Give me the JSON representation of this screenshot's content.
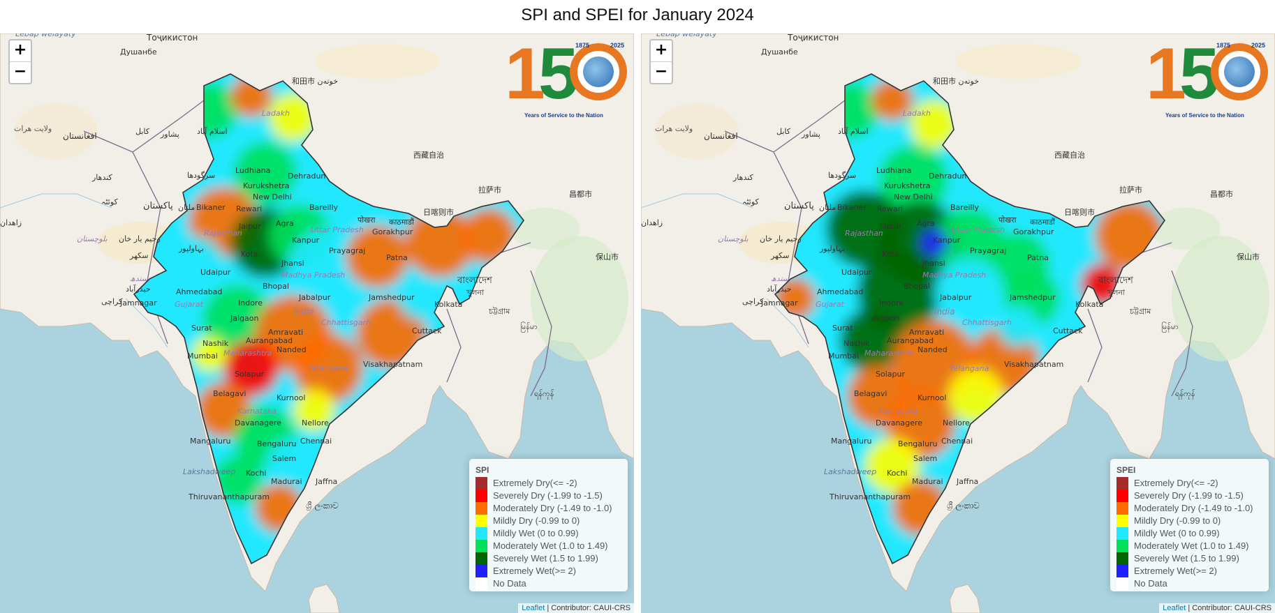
{
  "title": "SPI and SPEI for January 2024",
  "zoom": {
    "in": "+",
    "out": "−"
  },
  "logo": {
    "digit1": "1",
    "digit5": "5",
    "year_left": "1875",
    "year_right": "2025",
    "tagline": "Years of Service to the Nation"
  },
  "attribution": {
    "leaflet": "Leaflet",
    "separator": " | ",
    "contributor": "Contributor: CAUI-CRS"
  },
  "colors": {
    "extremely_dry": "#a52a2a",
    "severely_dry": "#ff0000",
    "moderately_dry": "#ff6a00",
    "mildly_dry": "#ffff00",
    "mildly_wet": "#22e8ff",
    "moderately_wet": "#00e05a",
    "severely_wet": "#006400",
    "extremely_wet": "#2020ff",
    "no_data": "#ffffff"
  },
  "legend_rows": [
    {
      "label": "Extremely Dry(<= -2)",
      "color": "#a52a2a"
    },
    {
      "label": "Severely Dry (-1.99 to -1.5)",
      "color": "#ff0000"
    },
    {
      "label": "Moderately Dry (-1.49 to -1.0)",
      "color": "#ff6a00"
    },
    {
      "label": "Mildly Dry (-0.99 to 0)",
      "color": "#ffff00"
    },
    {
      "label": "Mildly Wet (0 to 0.99)",
      "color": "#22e8ff"
    },
    {
      "label": "Moderately Wet (1.0 to 1.49)",
      "color": "#00e05a"
    },
    {
      "label": "Severely Wet (1.5 to 1.99)",
      "color": "#006400"
    },
    {
      "label": "Extremely Wet(>= 2)",
      "color": "#2020ff"
    },
    {
      "label": "No Data",
      "color": "#ffffff"
    }
  ],
  "panels": {
    "spi": {
      "legend_title": "SPI"
    },
    "spei": {
      "legend_title": "SPEI"
    }
  },
  "places": {
    "dushanbe": "Душанбе",
    "tajikistan": "Тоҷикистон",
    "hotan": "和田市 خوتەن",
    "afghanistan": "افغانستان",
    "herat": "ولایت هرات",
    "kabul": "کابل",
    "islamabad": "اسلام آباد",
    "peshawar": "پشاور",
    "kandahar": "کندهار",
    "quetta": "کوئٹہ",
    "sargodha": "سرگودھا",
    "pakistan": "پاکستان",
    "multan": "ملتان",
    "bahawalpur": "بہاولپور",
    "rahim_yar_khan": "رحیم یار خان",
    "sukkur": "سکھر",
    "sindh": "سندھ",
    "hyderabad_pk": "حیدرآباد",
    "karachi": "کراچی",
    "zahedan": "زاهدان",
    "balochistan": "بلوچستان",
    "xizang": "西藏自治",
    "lhasa": "拉萨市",
    "shigatse": "日喀则市",
    "changdu": "昌都市",
    "kathmandu": "काठमाडौं",
    "pokhara": "पोखरा",
    "bangladesh": "বাংলাদেশ",
    "khulna": "খুলনা",
    "chattogram": "চট্টগ্রাম",
    "myanmar": "မြန်မာ",
    "yangon": "ရန်ကုန်",
    "baoshan": "保山市",
    "ladakh": "Ladakh",
    "ludhiana": "Ludhiana",
    "dehradun": "Dehradun",
    "kurukshetra": "Kurukshetra",
    "new_delhi": "New Delhi",
    "bikaner": "Bikaner",
    "rewari": "Rewari",
    "bareilly": "Bareilly",
    "jaipur": "Jaipur",
    "agra": "Agra",
    "rajasthan": "Rajasthan",
    "uttar_pradesh": "Uttar Pradesh",
    "gorakhpur": "Gorakhpur",
    "kanpur": "Kanpur",
    "kota": "Kota",
    "prayagraj": "Prayagraj",
    "patna": "Patna",
    "jhansi": "Jhansi",
    "udaipur": "Udaipur",
    "madhya_pradesh": "Madhya Pradesh",
    "bhopal": "Bhopal",
    "ahmedabad": "Ahmedabad",
    "jamnagar": "Jamnagar",
    "gujarat": "Gujarat",
    "indore": "Indore",
    "jabalpur": "Jabalpur",
    "jamshedpur": "Jamshedpur",
    "kolkata": "Kolkata",
    "india": "India",
    "jalgaon": "Jalgaon",
    "surat": "Surat",
    "amravati": "Amravati",
    "chhattisgarh": "Chhattisgarh",
    "cuttack": "Cuttack",
    "nashik": "Nashik",
    "aurangabad": "Aurangabad",
    "mumbai": "Mumbai",
    "maharashtra": "Maharashtra",
    "nanded": "Nanded",
    "telangana": "Telangana",
    "visakhapatnam": "Visakhapatnam",
    "solapur": "Solapur",
    "belagavi": "Belagavi",
    "kurnool": "Kurnool",
    "karnataka": "Karnataka",
    "davanagere": "Davanagere",
    "nellore": "Nellore",
    "mangaluru": "Mangaluru",
    "bengaluru": "Bengaluru",
    "chennai": "Chennai",
    "lakshadweep": "Lakshadweep",
    "salem": "Salem",
    "kochi": "Kochi",
    "madurai": "Madurai",
    "jaffna": "Jaffna",
    "thiruvananthapuram": "Thiruvananthapuram",
    "sri_lanka": "ශ්‍රී ලංකාව"
  }
}
